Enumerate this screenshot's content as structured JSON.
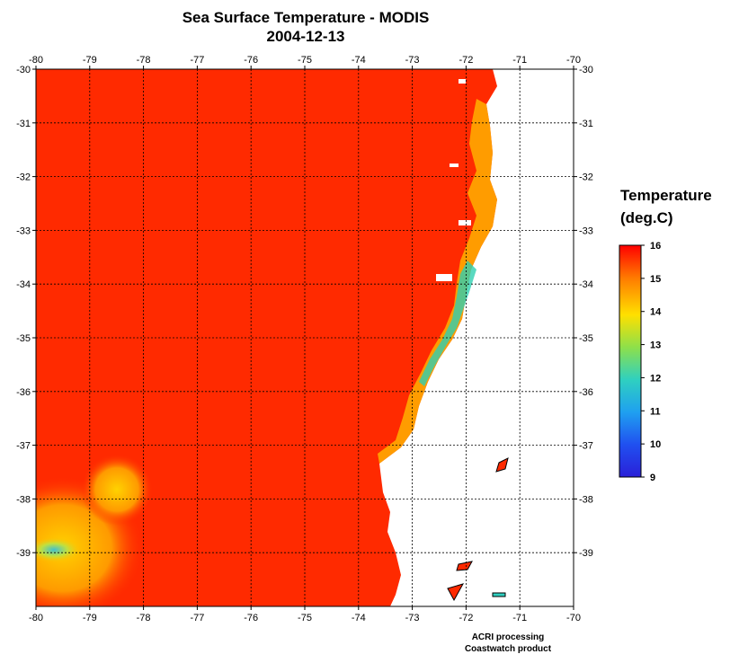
{
  "title": "Sea Surface Temperature - MODIS",
  "date": "2004-12-13",
  "map": {
    "lon_range": [
      -80,
      -70
    ],
    "lat_range": [
      -40,
      -30
    ],
    "lon_ticks": [
      "-80",
      "-79",
      "-78",
      "-77",
      "-76",
      "-75",
      "-74",
      "-73",
      "-72",
      "-71",
      "-70"
    ],
    "lat_ticks": [
      "-30",
      "-31",
      "-32",
      "-33",
      "-34",
      "-35",
      "-36",
      "-37",
      "-38",
      "-39"
    ],
    "grid": true,
    "ocean_color": "#ff2a00",
    "land_color": "#ffffff"
  },
  "colorbar": {
    "title_line1": "Temperature",
    "title_line2": "(deg.C)",
    "ticks": [
      "16",
      "15",
      "14",
      "13",
      "12",
      "11",
      "10",
      "9"
    ],
    "min": 9,
    "max": 16,
    "colors": [
      "#ff0000",
      "#ff7a00",
      "#ffe000",
      "#8ee04a",
      "#2fd0c0",
      "#1fa0f0",
      "#2050f0",
      "#2a20d8"
    ]
  },
  "credits": {
    "line1": "ACRI processing",
    "line2": "Coastwatch product"
  }
}
